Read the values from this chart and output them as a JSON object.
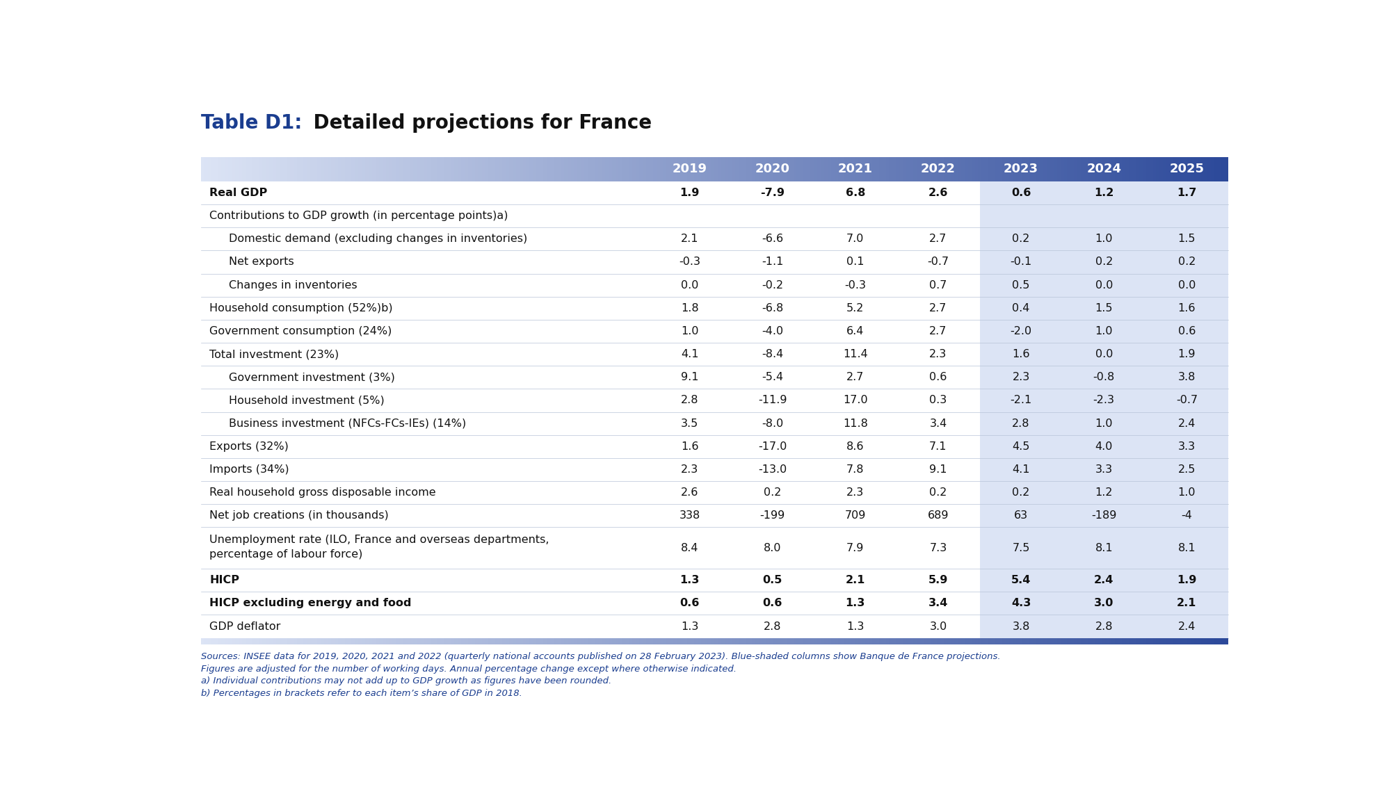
{
  "title_prefix": "Table D1:",
  "title_suffix": " Detailed projections for France",
  "columns": [
    "2019",
    "2020",
    "2021",
    "2022",
    "2023",
    "2024",
    "2025"
  ],
  "rows": [
    {
      "label": "Real GDP",
      "indent": 0,
      "bold": true,
      "values": [
        "1.9",
        "-7.9",
        "6.8",
        "2.6",
        "0.6",
        "1.2",
        "1.7"
      ],
      "multiline": false
    },
    {
      "label": "Contributions to GDP growth (in percentage points)a)",
      "indent": 0,
      "bold": false,
      "values": [
        "",
        "",
        "",
        "",
        "",
        "",
        ""
      ],
      "multiline": false
    },
    {
      "label": "Domestic demand (excluding changes in inventories)",
      "indent": 1,
      "bold": false,
      "values": [
        "2.1",
        "-6.6",
        "7.0",
        "2.7",
        "0.2",
        "1.0",
        "1.5"
      ],
      "multiline": false
    },
    {
      "label": "Net exports",
      "indent": 1,
      "bold": false,
      "values": [
        "-0.3",
        "-1.1",
        "0.1",
        "-0.7",
        "-0.1",
        "0.2",
        "0.2"
      ],
      "multiline": false
    },
    {
      "label": "Changes in inventories",
      "indent": 1,
      "bold": false,
      "values": [
        "0.0",
        "-0.2",
        "-0.3",
        "0.7",
        "0.5",
        "0.0",
        "0.0"
      ],
      "multiline": false
    },
    {
      "label": "Household consumption (52%)b)",
      "indent": 0,
      "bold": false,
      "values": [
        "1.8",
        "-6.8",
        "5.2",
        "2.7",
        "0.4",
        "1.5",
        "1.6"
      ],
      "multiline": false
    },
    {
      "label": "Government consumption (24%)",
      "indent": 0,
      "bold": false,
      "values": [
        "1.0",
        "-4.0",
        "6.4",
        "2.7",
        "-2.0",
        "1.0",
        "0.6"
      ],
      "multiline": false
    },
    {
      "label": "Total investment (23%)",
      "indent": 0,
      "bold": false,
      "values": [
        "4.1",
        "-8.4",
        "11.4",
        "2.3",
        "1.6",
        "0.0",
        "1.9"
      ],
      "multiline": false
    },
    {
      "label": "Government investment (3%)",
      "indent": 1,
      "bold": false,
      "values": [
        "9.1",
        "-5.4",
        "2.7",
        "0.6",
        "2.3",
        "-0.8",
        "3.8"
      ],
      "multiline": false
    },
    {
      "label": "Household investment (5%)",
      "indent": 1,
      "bold": false,
      "values": [
        "2.8",
        "-11.9",
        "17.0",
        "0.3",
        "-2.1",
        "-2.3",
        "-0.7"
      ],
      "multiline": false
    },
    {
      "label": "Business investment (NFCs-FCs-IEs) (14%)",
      "indent": 1,
      "bold": false,
      "values": [
        "3.5",
        "-8.0",
        "11.8",
        "3.4",
        "2.8",
        "1.0",
        "2.4"
      ],
      "multiline": false
    },
    {
      "label": "Exports (32%)",
      "indent": 0,
      "bold": false,
      "values": [
        "1.6",
        "-17.0",
        "8.6",
        "7.1",
        "4.5",
        "4.0",
        "3.3"
      ],
      "multiline": false
    },
    {
      "label": "Imports (34%)",
      "indent": 0,
      "bold": false,
      "values": [
        "2.3",
        "-13.0",
        "7.8",
        "9.1",
        "4.1",
        "3.3",
        "2.5"
      ],
      "multiline": false
    },
    {
      "label": "Real household gross disposable income",
      "indent": 0,
      "bold": false,
      "values": [
        "2.6",
        "0.2",
        "2.3",
        "0.2",
        "0.2",
        "1.2",
        "1.0"
      ],
      "multiline": false
    },
    {
      "label": "Net job creations (in thousands)",
      "indent": 0,
      "bold": false,
      "values": [
        "338",
        "-199",
        "709",
        "689",
        "63",
        "-189",
        "-4"
      ],
      "multiline": false
    },
    {
      "label": "Unemployment rate (ILO, France and overseas departments,\npercentage of labour force)",
      "indent": 0,
      "bold": false,
      "values": [
        "8.4",
        "8.0",
        "7.9",
        "7.3",
        "7.5",
        "8.1",
        "8.1"
      ],
      "multiline": true
    },
    {
      "label": "HICP",
      "indent": 0,
      "bold": true,
      "values": [
        "1.3",
        "0.5",
        "2.1",
        "5.9",
        "5.4",
        "2.4",
        "1.9"
      ],
      "multiline": false
    },
    {
      "label": "HICP excluding energy and food",
      "indent": 0,
      "bold": true,
      "values": [
        "0.6",
        "0.6",
        "1.3",
        "3.4",
        "4.3",
        "3.0",
        "2.1"
      ],
      "multiline": false
    },
    {
      "label": "GDP deflator",
      "indent": 0,
      "bold": false,
      "values": [
        "1.3",
        "2.8",
        "1.3",
        "3.0",
        "3.8",
        "2.8",
        "2.4"
      ],
      "multiline": false
    }
  ],
  "footnotes": [
    "Sources: INSEE data for 2019, 2020, 2021 and 2022 (quarterly national accounts published on 28 February 2023). Blue-shaded columns show Banque de France projections.",
    "Figures are adjusted for the number of working days. Annual percentage change except where otherwise indicated.",
    "a) Individual contributions may not add up to GDP growth as figures have been rounded.",
    "b) Percentages in brackets refer to each item’s share of GDP in 2018."
  ],
  "grad_left": "#dce4f5",
  "grad_right": "#2b4899",
  "shaded_col_color": "#dce4f5",
  "title_color_prefix": "#1a3d8f",
  "title_color_suffix": "#111111",
  "footnote_color": "#1a3d8f",
  "row_line_color": "#b8c4d8",
  "font_size_title_prefix": 20,
  "font_size_title_suffix": 20,
  "font_size_header": 13,
  "font_size_body": 11.5,
  "font_size_footnote": 9.5
}
